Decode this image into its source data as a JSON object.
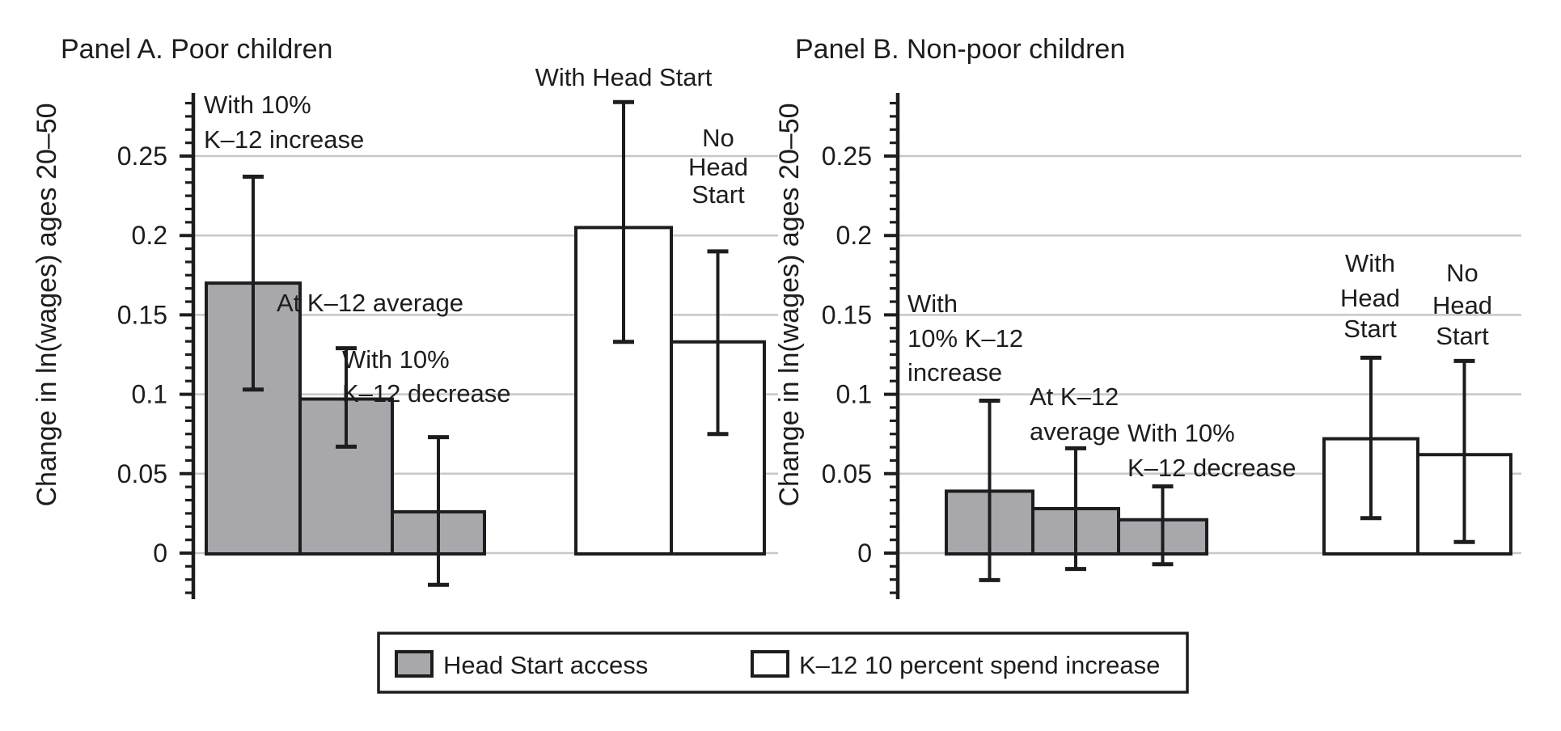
{
  "chart_data": {
    "type": "bar",
    "figure_kind": "two-panel bar chart with error bars",
    "ylabel": "Change in ln(wages) ages 20–50",
    "y_ticks": [
      0,
      0.05,
      0.1,
      0.15,
      0.2,
      0.25
    ],
    "y_tick_labels": [
      "0",
      "0.05",
      "0.1",
      "0.15",
      "0.2",
      "0.25"
    ],
    "ylim": [
      -0.029,
      0.29
    ],
    "grid": "horizontal",
    "error_bars": "95% CI",
    "panels": [
      {
        "id": "panel-a",
        "title": "Panel A. Poor children",
        "bars": [
          {
            "series": "Head Start access",
            "label_lines": [
              "With 10%",
              "K–12 increase"
            ],
            "value": 0.17,
            "ci": [
              0.103,
              0.237
            ]
          },
          {
            "series": "Head Start access",
            "label_lines": [
              "At K–12 average"
            ],
            "value": 0.097,
            "ci": [
              0.067,
              0.129
            ]
          },
          {
            "series": "Head Start access",
            "label_lines": [
              "With 10%",
              "K–12 decrease"
            ],
            "value": 0.026,
            "ci": [
              -0.02,
              0.073
            ]
          },
          {
            "series": "K–12 10 percent spend increase",
            "label_lines": [
              "With Head Start"
            ],
            "value": 0.205,
            "ci": [
              0.133,
              0.284
            ]
          },
          {
            "series": "K–12 10 percent spend increase",
            "label_lines": [
              "No",
              "Head",
              "Start"
            ],
            "value": 0.133,
            "ci": [
              0.075,
              0.19
            ]
          }
        ]
      },
      {
        "id": "panel-b",
        "title": "Panel B. Non-poor children",
        "bars": [
          {
            "series": "Head Start access",
            "label_lines": [
              "With",
              "10% K–12",
              "increase"
            ],
            "value": 0.039,
            "ci": [
              -0.017,
              0.096
            ]
          },
          {
            "series": "Head Start access",
            "label_lines": [
              "At K–12",
              "average"
            ],
            "value": 0.028,
            "ci": [
              -0.01,
              0.066
            ]
          },
          {
            "series": "Head Start access",
            "label_lines": [
              "With 10%",
              "K–12 decrease"
            ],
            "value": 0.021,
            "ci": [
              -0.007,
              0.042
            ]
          },
          {
            "series": "K–12 10 percent spend increase",
            "label_lines": [
              "With",
              "Head",
              "Start"
            ],
            "value": 0.072,
            "ci": [
              0.022,
              0.123
            ]
          },
          {
            "series": "K–12 10 percent spend increase",
            "label_lines": [
              "No",
              "Head",
              "Start"
            ],
            "value": 0.062,
            "ci": [
              0.007,
              0.121
            ]
          }
        ]
      }
    ],
    "legend": {
      "position": "bottom",
      "entries": [
        {
          "label": "Head Start access",
          "fill": "gray"
        },
        {
          "label": "K–12 10 percent spend increase",
          "fill": "white"
        }
      ]
    },
    "colors": {
      "bar_gray": "#a8a8ac",
      "bar_white": "#ffffff",
      "ink": "#1d1d20",
      "grid": "#c7c7c7",
      "background": "#ffffff"
    }
  }
}
